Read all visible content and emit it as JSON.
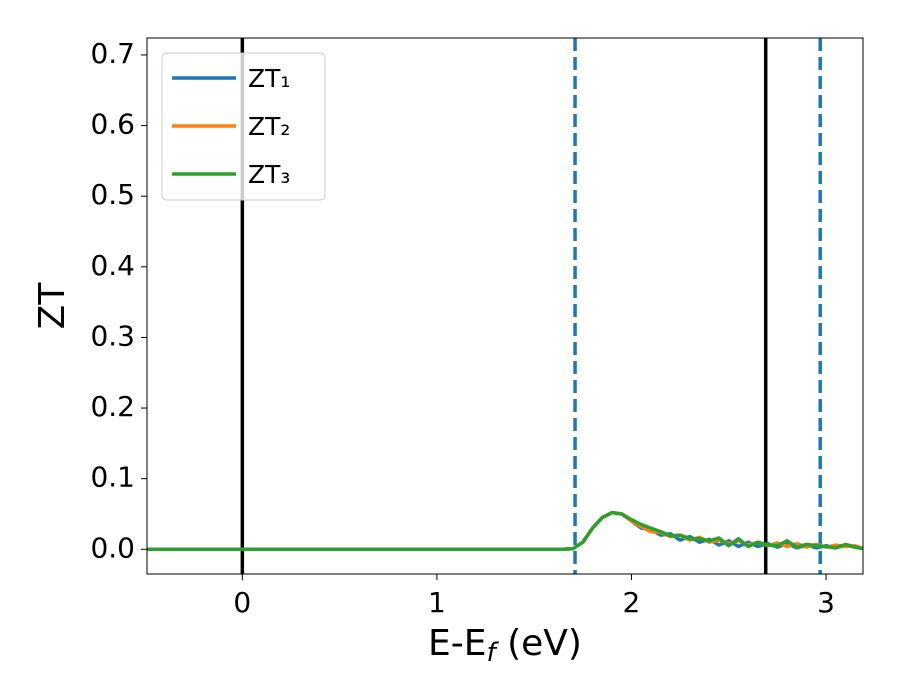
{
  "chart_data": {
    "type": "line",
    "xlabel": {
      "text": "E-E",
      "subscript": "f",
      "suffix": " (eV)"
    },
    "ylabel": "ZT",
    "xlim": [
      -0.49,
      3.19
    ],
    "ylim": [
      -0.035,
      0.724
    ],
    "xticks": [
      0,
      1,
      2,
      3
    ],
    "yticks": [
      {
        "value": 0,
        "label": "0.0"
      },
      0.1,
      0.2,
      0.3,
      0.4,
      0.5,
      0.6,
      0.7
    ],
    "legend": "upper left",
    "vlines": [
      {
        "x": 0,
        "color": "#000000",
        "style": "solid"
      },
      {
        "x": 1.71,
        "color": "#1f77b4",
        "style": "dashed"
      },
      {
        "x": 2.69,
        "color": "#000000",
        "style": "solid"
      },
      {
        "x": 2.97,
        "color": "#1f77b4",
        "style": "dashed"
      }
    ],
    "x": [
      -0.49,
      0,
      0.5,
      1.0,
      1.5,
      1.65,
      1.7,
      1.75,
      1.8,
      1.85,
      1.9,
      1.95,
      2.0,
      2.05,
      2.1,
      2.15,
      2.2,
      2.25,
      2.3,
      2.35,
      2.4,
      2.45,
      2.5,
      2.55,
      2.6,
      2.65,
      2.7,
      2.75,
      2.8,
      2.85,
      2.9,
      2.95,
      3.0,
      3.05,
      3.1,
      3.15,
      3.19
    ],
    "series": [
      {
        "name": "ZT₁",
        "color": "#1f77b4",
        "values": [
          0,
          0,
          0,
          0,
          0,
          0,
          0.001,
          0.01,
          0.03,
          0.045,
          0.052,
          0.05,
          0.04,
          0.03,
          0.028,
          0.02,
          0.022,
          0.013,
          0.018,
          0.01,
          0.014,
          0.006,
          0.012,
          0.004,
          0.01,
          0.004,
          0.008,
          0.003,
          0.008,
          0.002,
          0.006,
          0.002,
          0.005,
          0.002,
          0.006,
          0.003,
          0.001
        ]
      },
      {
        "name": "ZT₂",
        "color": "#ff7f0e",
        "values": [
          0,
          0,
          0,
          0,
          0,
          0,
          0.001,
          0.01,
          0.03,
          0.045,
          0.052,
          0.05,
          0.04,
          0.032,
          0.025,
          0.024,
          0.018,
          0.02,
          0.013,
          0.017,
          0.01,
          0.013,
          0.008,
          0.012,
          0.006,
          0.01,
          0.005,
          0.009,
          0.004,
          0.008,
          0.003,
          0.007,
          0.003,
          0.006,
          0.004,
          0.005,
          0.001
        ]
      },
      {
        "name": "ZT₃",
        "color": "#2ca02c",
        "values": [
          0,
          0,
          0,
          0,
          0,
          0,
          0.001,
          0.01,
          0.03,
          0.045,
          0.052,
          0.05,
          0.042,
          0.035,
          0.03,
          0.025,
          0.019,
          0.02,
          0.015,
          0.015,
          0.012,
          0.016,
          0.005,
          0.015,
          0.004,
          0.01,
          0.006,
          0.005,
          0.012,
          0.003,
          0.007,
          0.005,
          0.004,
          0.002,
          0.007,
          0.003,
          0.001
        ]
      }
    ]
  }
}
